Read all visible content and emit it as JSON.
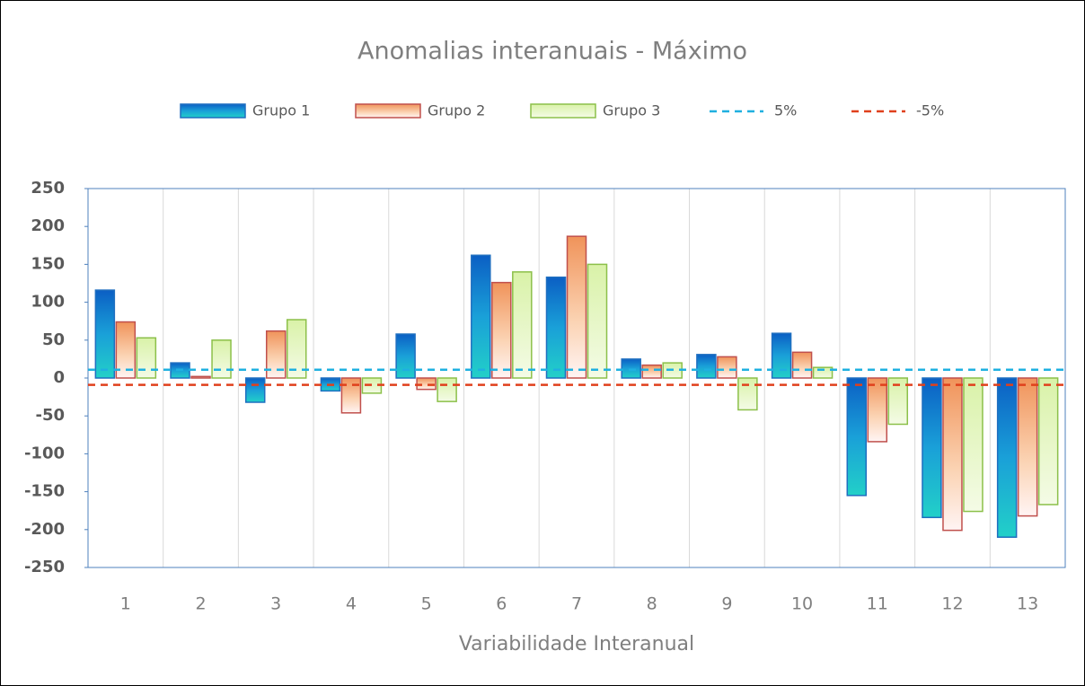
{
  "chart_data": {
    "type": "bar",
    "title": "Anomalias interanuais - Máximo",
    "x_label": "Variabilidade Interanual",
    "categories": [
      "1",
      "2",
      "3",
      "4",
      "5",
      "6",
      "7",
      "8",
      "9",
      "10",
      "11",
      "12",
      "13"
    ],
    "series": [
      {
        "name": "Grupo 1",
        "color": "#1f6fc0",
        "values": [
          116,
          20,
          -32,
          -17,
          58,
          162,
          133,
          25,
          31,
          59,
          -155,
          -184,
          -210
        ]
      },
      {
        "name": "Grupo 2",
        "color": "#c0504d",
        "values": [
          74,
          2,
          62,
          -46,
          -15,
          126,
          187,
          17,
          28,
          34,
          -84,
          -201,
          -182
        ]
      },
      {
        "name": "Grupo 3",
        "color": "#8cc04a",
        "values": [
          53,
          50,
          77,
          -20,
          -31,
          140,
          150,
          20,
          -42,
          14,
          -61,
          -176,
          -167
        ]
      }
    ],
    "reference_lines": [
      {
        "name": "5%",
        "color": "#1fb0e0",
        "value": 11
      },
      {
        "name": "-5%",
        "color": "#e0401c",
        "value": -9
      }
    ],
    "ylim": [
      -250,
      250
    ],
    "yticks": [
      -250,
      -200,
      -150,
      -100,
      -50,
      0,
      50,
      100,
      150,
      200,
      250
    ],
    "grid": "vertical"
  }
}
